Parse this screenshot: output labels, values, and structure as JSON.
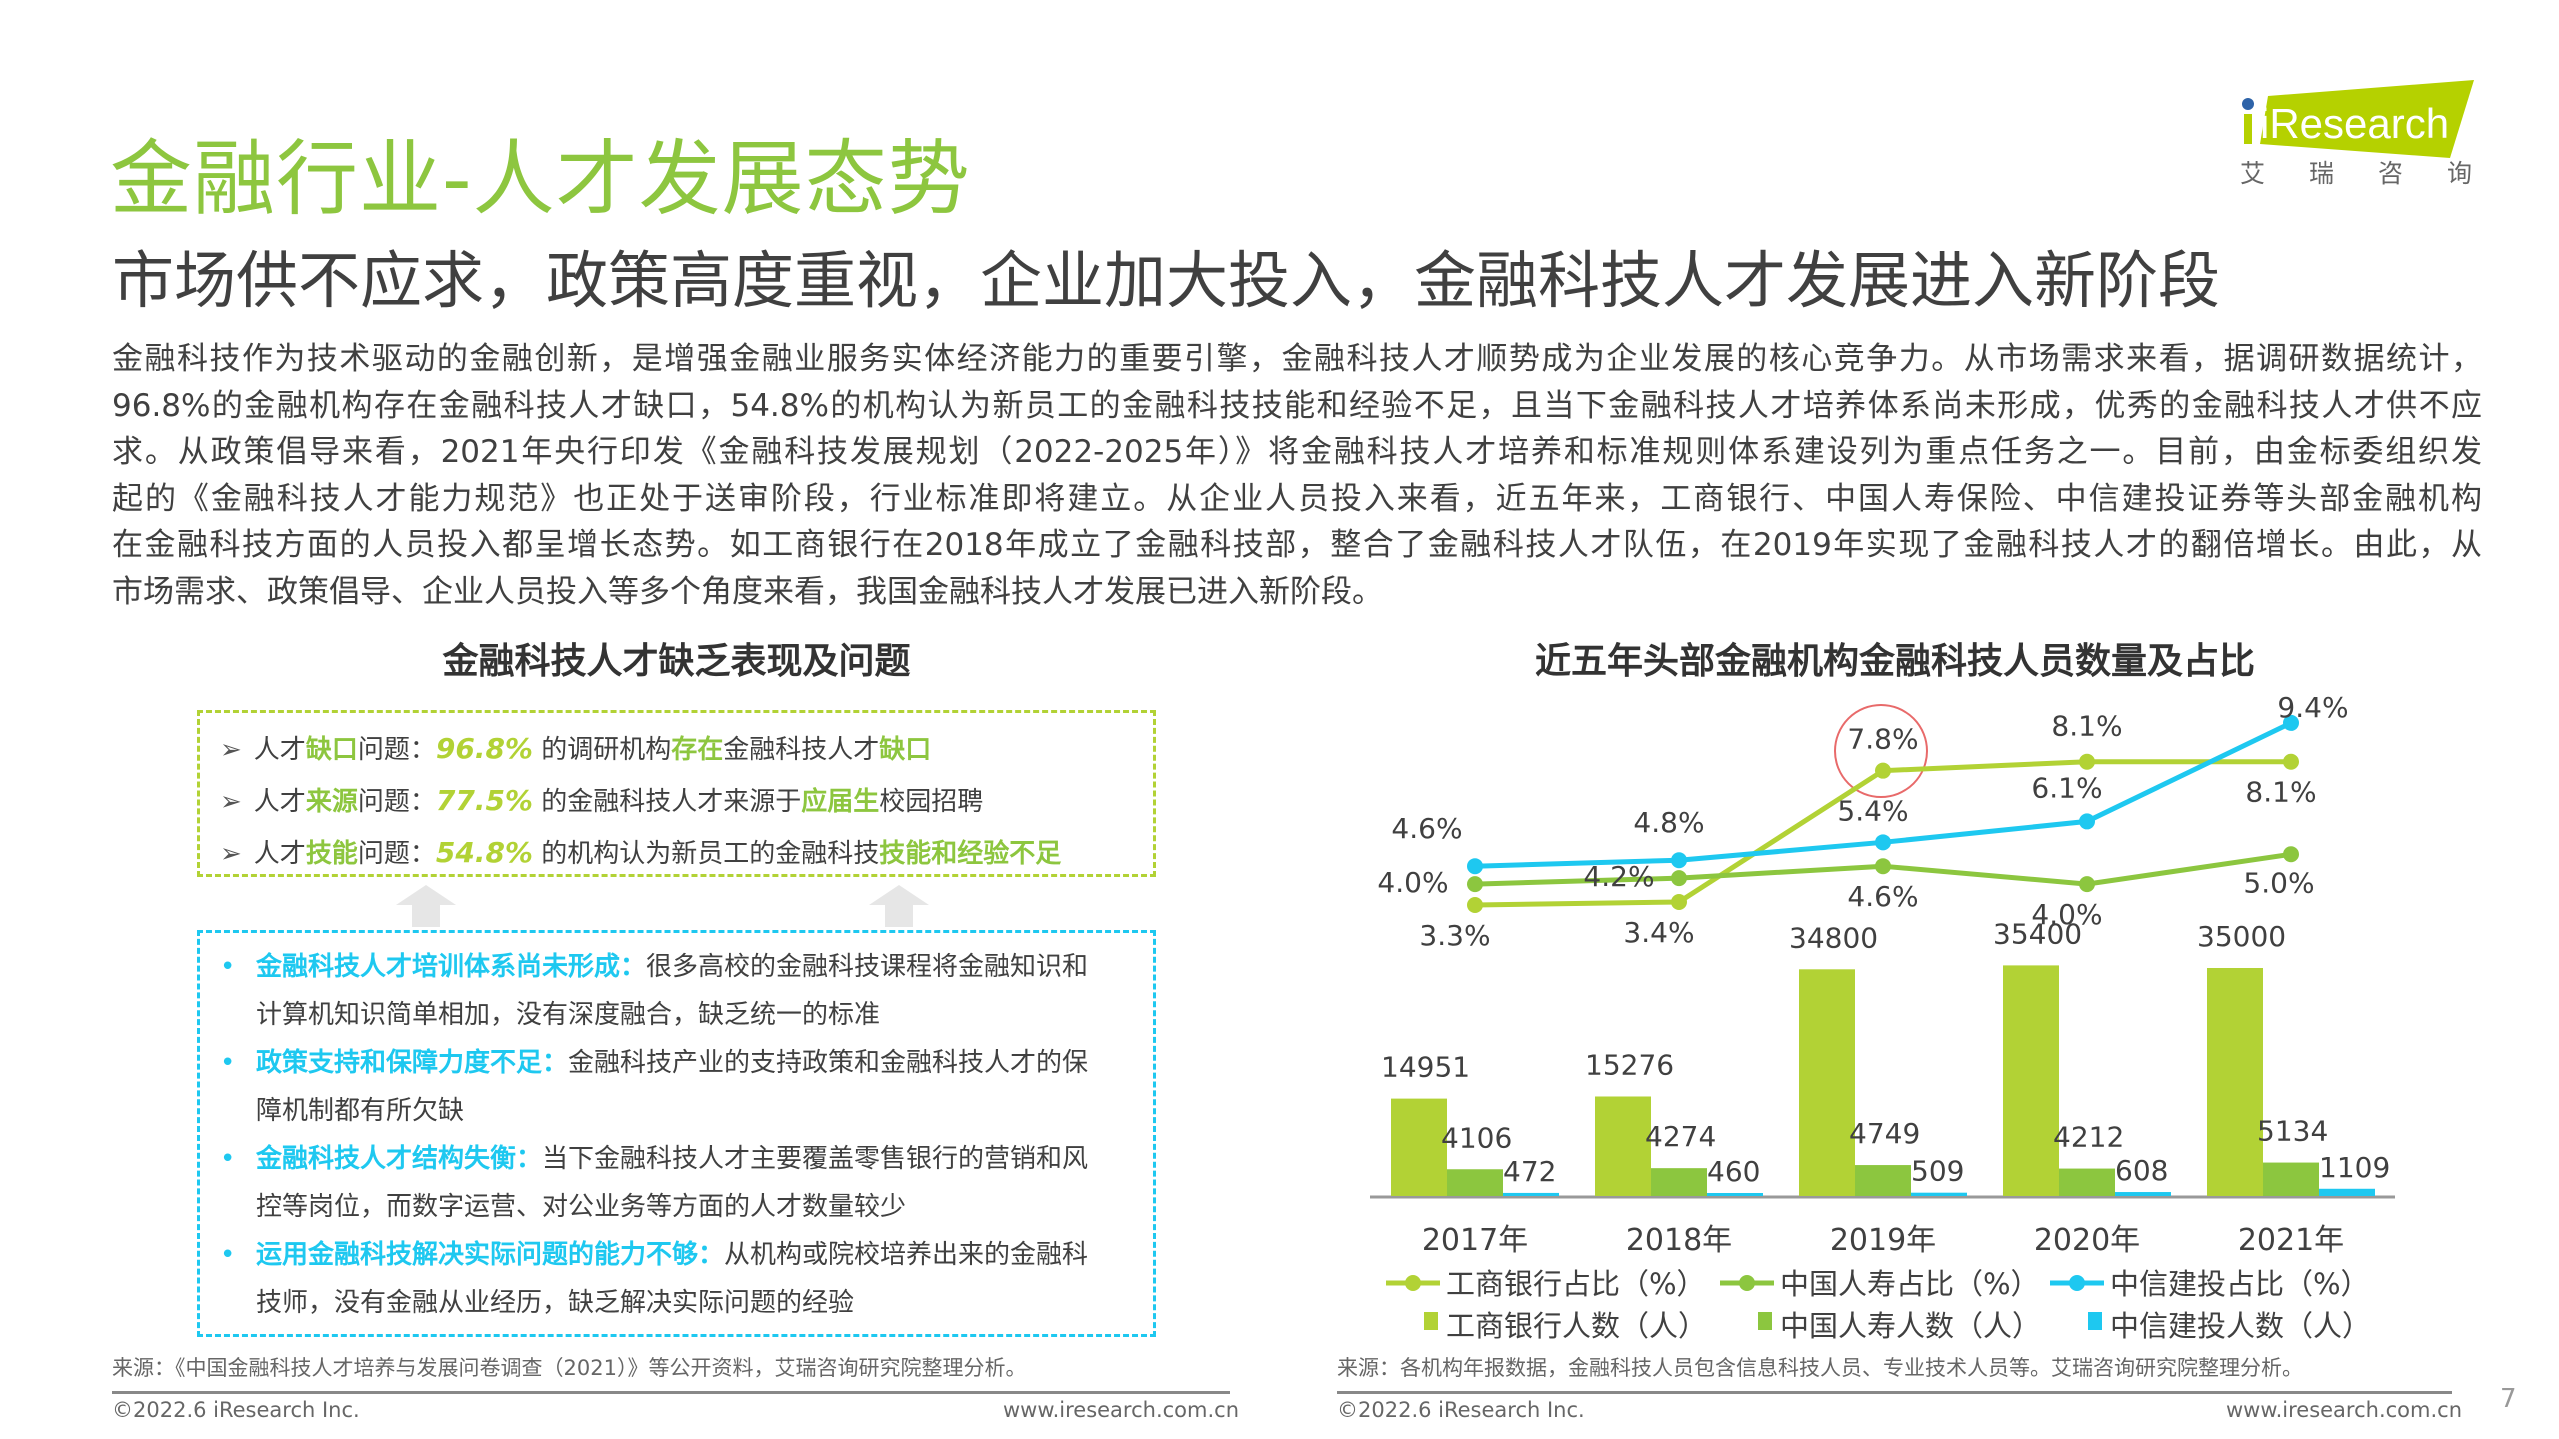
{
  "header": {
    "title": "金融行业-人才发展态势",
    "subtitle": "市场供不应求，政策高度重视，企业加大投入，金融科技人才发展进入新阶段",
    "logo": {
      "brand": "iResearch",
      "cn": "艾 瑞 咨 询",
      "color": "#b5d100"
    }
  },
  "intro": {
    "lines": [
      "金融科技作为技术驱动的金融创新，是增强金融业服务实体经济能力的重要引擎，金融科技人才顺势成为企业发展的核心竞争力。从市场需求来看，据调研数据统计，",
      "96.8%的金融机构存在金融科技人才缺口，54.8%的机构认为新员工的金融科技技能和经验不足，且当下金融科技人才培养体系尚未形成，优秀的金融科技人才供不应",
      "求。从政策倡导来看，2021年央行印发《金融科技发展规划（2022-2025年）》将金融科技人才培养和标准规则体系建设列为重点任务之一。目前，由金标委组织发",
      "起的《金融科技人才能力规范》也正处于送审阶段，行业标准即将建立。从企业人员投入来看，近五年来，工商银行、中国人寿保险、中信建投证券等头部金融机构",
      "在金融科技方面的人员投入都呈增长态势。如工商银行在2018年成立了金融科技部，整合了金融科技人才队伍，在2019年实现了金融科技人才的翻倍增长。由此，从",
      "市场需求、政策倡导、企业人员投入等多个角度来看，我国金融科技人才发展已进入新阶段。"
    ]
  },
  "left": {
    "heading": "金融科技人才缺乏表现及问题",
    "problems": [
      {
        "a": "人才",
        "hl": "缺口",
        "b": "问题：",
        "pct": "96.8%",
        "c": " 的调研机构",
        "hl2": "存在",
        "d": "金融科技人才",
        "hl3": "缺口"
      },
      {
        "a": "人才",
        "hl": "来源",
        "b": "问题：",
        "pct": "77.5%",
        "c": " 的金融科技人才来源于",
        "hl2": "应届生",
        "d": "校园招聘",
        "hl3": ""
      },
      {
        "a": "人才",
        "hl": "技能",
        "b": "问题：",
        "pct": "54.8%",
        "c": " 的机构认为新员工的金融科技",
        "hl2": "技能和经验不足",
        "d": "",
        "hl3": ""
      }
    ],
    "causes": [
      {
        "head": "金融科技人才培训体系尚未形成：",
        "text": "很多高校的金融科技课程将金融知识和",
        "cont": "计算机知识简单相加，没有深度融合，缺乏统一的标准"
      },
      {
        "head": "政策支持和保障力度不足：",
        "text": "金融科技产业的支持政策和金融科技人才的保",
        "cont": "障机制都有所欠缺"
      },
      {
        "head": "金融科技人才结构失衡：",
        "text": "当下金融科技人才主要覆盖零售银行的营销和风",
        "cont": "控等岗位，而数字运营、对公业务等方面的人才数量较少"
      },
      {
        "head": "运用金融科技解决实际问题的能力不够：",
        "text": "从机构或院校培养出来的金融科",
        "cont": "技师，没有金融从业经历，缺乏解决实际问题的经验"
      }
    ],
    "source": "来源：《中国金融科技人才培养与发展问卷调查（2021）》等公开资料，艾瑞咨询研究院整理分析。"
  },
  "chart_data": {
    "type": "bar+line",
    "title": "近五年头部金融机构金融科技人员数量及占比",
    "categories": [
      "2017年",
      "2018年",
      "2019年",
      "2020年",
      "2021年"
    ],
    "bar_series": [
      {
        "name": "工商银行人数（人）",
        "color": "#b2d235",
        "values": [
          14951,
          15276,
          34800,
          35400,
          35000
        ]
      },
      {
        "name": "中国人寿人数（人）",
        "color": "#8cc63f",
        "values": [
          4106,
          4274,
          4749,
          4212,
          5134
        ]
      },
      {
        "name": "中信建投人数（人）",
        "color": "#1ec8f0",
        "values": [
          472,
          460,
          509,
          608,
          1109
        ]
      }
    ],
    "line_series": [
      {
        "name": "工商银行占比（%）",
        "color": "#b2d235",
        "values": [
          3.3,
          3.4,
          7.8,
          8.1,
          8.1
        ],
        "labels": [
          "3.3%",
          "3.4%",
          "7.8%",
          "8.1%",
          "8.1%"
        ]
      },
      {
        "name": "中国人寿占比（%）",
        "color": "#8cc63f",
        "values": [
          4.0,
          4.2,
          4.6,
          4.0,
          5.0
        ],
        "labels": [
          "4.0%",
          "4.2%",
          "4.6%",
          "4.0%",
          "5.0%"
        ]
      },
      {
        "name": "中信建投占比（%）",
        "color": "#1ec8f0",
        "values": [
          4.6,
          4.8,
          5.4,
          6.1,
          9.4
        ],
        "labels": [
          "4.6%",
          "4.8%",
          "5.4%",
          "6.1%",
          "9.4%"
        ]
      }
    ],
    "highlight": "2019年工商银行占比 7.8%",
    "grid": false,
    "legend": "bottom",
    "source": "来源：各机构年报数据，金融科技人员包含信息科技人员、专业技术人员等。艾瑞咨询研究院整理分析。"
  },
  "footer": {
    "copyright": "©2022.6 iResearch Inc.",
    "url": "www.iresearch.com.cn",
    "page": "7"
  }
}
